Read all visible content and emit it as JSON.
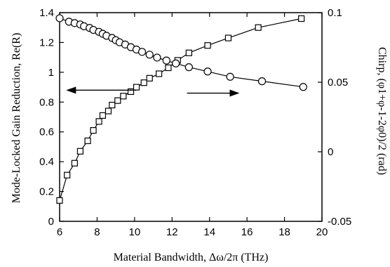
{
  "chart_data": {
    "type": "scatter",
    "xlabel": "Material Bandwidth, Δω/2π (THz)",
    "ylabel_left": "Mode-Locked Gain Reduction, Re(R)",
    "ylabel_right": "Chirp, (φ1+φ-1-2φ0)/2 (rad)",
    "xlim": [
      6,
      20
    ],
    "ylim_left": [
      0,
      1.4
    ],
    "ylim_right": [
      -0.05,
      0.1
    ],
    "x_ticks": [
      "6",
      "8",
      "10",
      "12",
      "14",
      "16",
      "18",
      "20"
    ],
    "y_left_ticks": [
      "0",
      "0.2",
      "0.4",
      "0.6",
      "0.8",
      "1",
      "1.2",
      "1.4"
    ],
    "y_right_ticks": [
      "-0.05",
      "0",
      "0.05",
      "0.1"
    ],
    "series": [
      {
        "axis": "left",
        "marker": "square",
        "x": [
          6.0,
          6.4,
          6.8,
          7.1,
          7.5,
          7.8,
          8.1,
          8.3,
          8.6,
          8.8,
          9.1,
          9.4,
          9.8,
          10.1,
          10.5,
          10.8,
          11.3,
          11.8,
          12.3,
          12.9,
          13.9,
          15.0,
          16.6,
          18.9
        ],
        "y": [
          0.14,
          0.31,
          0.39,
          0.47,
          0.54,
          0.61,
          0.67,
          0.71,
          0.74,
          0.78,
          0.81,
          0.84,
          0.87,
          0.9,
          0.93,
          0.96,
          0.99,
          1.03,
          1.08,
          1.13,
          1.18,
          1.23,
          1.3,
          1.36
        ]
      },
      {
        "axis": "right",
        "marker": "circle",
        "x": [
          6.0,
          6.5,
          6.8,
          7.1,
          7.3,
          7.6,
          7.8,
          8.1,
          8.3,
          8.5,
          8.8,
          9.0,
          9.2,
          9.5,
          9.8,
          10.1,
          10.4,
          10.8,
          11.2,
          11.7,
          12.2,
          12.9,
          13.9,
          15.1,
          16.8,
          19.0
        ],
        "y": [
          0.096,
          0.0935,
          0.0925,
          0.0915,
          0.0902,
          0.089,
          0.0876,
          0.0862,
          0.0848,
          0.0834,
          0.0818,
          0.0802,
          0.0787,
          0.0771,
          0.0752,
          0.0735,
          0.0718,
          0.0698,
          0.0677,
          0.0656,
          0.0635,
          0.0608,
          0.0577,
          0.0539,
          0.0507,
          0.0466
        ]
      }
    ],
    "annotations": [
      {
        "type": "arrow",
        "direction": "left",
        "points_to": "left axis"
      },
      {
        "type": "arrow",
        "direction": "right",
        "points_to": "right axis"
      }
    ]
  }
}
